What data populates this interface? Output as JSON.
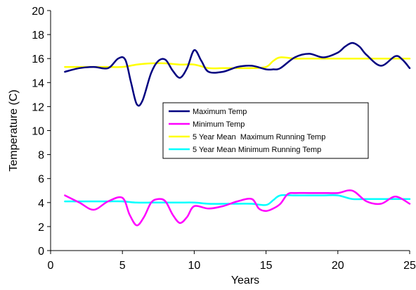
{
  "chart_data": {
    "type": "line",
    "title": "",
    "xlabel": "Years",
    "ylabel": "Temperature (C)",
    "xlim": [
      0,
      25
    ],
    "ylim": [
      0,
      20
    ],
    "xticks": [
      0,
      5,
      10,
      15,
      20,
      25
    ],
    "yticks": [
      0,
      2,
      4,
      6,
      8,
      10,
      12,
      14,
      16,
      18,
      20
    ],
    "grid": false,
    "legend_position": "center-right",
    "series": [
      {
        "name": "Maximum Temp",
        "color": "#000080",
        "x": [
          1,
          2,
          3,
          4,
          4.7,
          5.2,
          5.6,
          6,
          6.4,
          7,
          7.5,
          8,
          8.5,
          9,
          9.5,
          10,
          10.5,
          11,
          12,
          13,
          14,
          15,
          15.5,
          16,
          17,
          18,
          19,
          20,
          20.5,
          21,
          21.5,
          22,
          23,
          24,
          24.5,
          25
        ],
        "y": [
          14.9,
          15.2,
          15.3,
          15.2,
          16.0,
          15.9,
          14.0,
          12.2,
          12.5,
          14.8,
          15.8,
          15.9,
          15.0,
          14.4,
          15.2,
          16.7,
          15.8,
          14.9,
          14.9,
          15.3,
          15.4,
          15.1,
          15.1,
          15.2,
          16.1,
          16.4,
          16.1,
          16.5,
          17.0,
          17.3,
          17.0,
          16.3,
          15.4,
          16.2,
          15.9,
          15.2
        ]
      },
      {
        "name": "Minimum Temp",
        "color": "#FF00FF",
        "x": [
          1,
          2,
          3,
          4,
          5,
          5.5,
          6,
          6.5,
          7,
          7.5,
          8,
          8.5,
          9,
          9.5,
          10,
          11,
          12,
          13,
          14,
          14.5,
          15,
          15.5,
          16,
          16.5,
          17,
          18,
          19,
          20,
          21,
          22,
          23,
          24,
          25
        ],
        "y": [
          4.6,
          4.0,
          3.4,
          4.1,
          4.4,
          3.0,
          2.1,
          2.8,
          4.0,
          4.3,
          4.1,
          3.0,
          2.3,
          2.8,
          3.7,
          3.5,
          3.7,
          4.1,
          4.3,
          3.5,
          3.3,
          3.5,
          3.9,
          4.7,
          4.8,
          4.8,
          4.8,
          4.8,
          5.0,
          4.1,
          3.9,
          4.5,
          3.9
        ]
      },
      {
        "name": "5 Year Mean  Maximum Running Temp",
        "color": "#FFFF00",
        "x": [
          1,
          2,
          3,
          4,
          5,
          6,
          7,
          8,
          9,
          10,
          11,
          12,
          13,
          14,
          15,
          15.5,
          16,
          17,
          18,
          19,
          20,
          21,
          22,
          23,
          24,
          25
        ],
        "y": [
          15.3,
          15.3,
          15.3,
          15.3,
          15.3,
          15.5,
          15.6,
          15.6,
          15.5,
          15.5,
          15.2,
          15.2,
          15.2,
          15.2,
          15.3,
          15.8,
          16.1,
          16.0,
          16.0,
          16.0,
          16.0,
          16.0,
          16.0,
          16.0,
          16.0,
          16.0
        ]
      },
      {
        "name": "5 Year Mean Minimum Running Temp",
        "color": "#00FFFF",
        "x": [
          1,
          2,
          3,
          4,
          5,
          6,
          7,
          8,
          9,
          10,
          11,
          12,
          13,
          14,
          15,
          15.5,
          16,
          17,
          18,
          19,
          20,
          21,
          22,
          23,
          24,
          25
        ],
        "y": [
          4.1,
          4.1,
          4.1,
          4.1,
          4.1,
          4.0,
          4.0,
          4.0,
          4.0,
          4.0,
          3.9,
          3.9,
          3.9,
          3.9,
          3.8,
          4.2,
          4.6,
          4.6,
          4.6,
          4.6,
          4.6,
          4.3,
          4.3,
          4.3,
          4.3,
          4.3
        ]
      }
    ]
  }
}
